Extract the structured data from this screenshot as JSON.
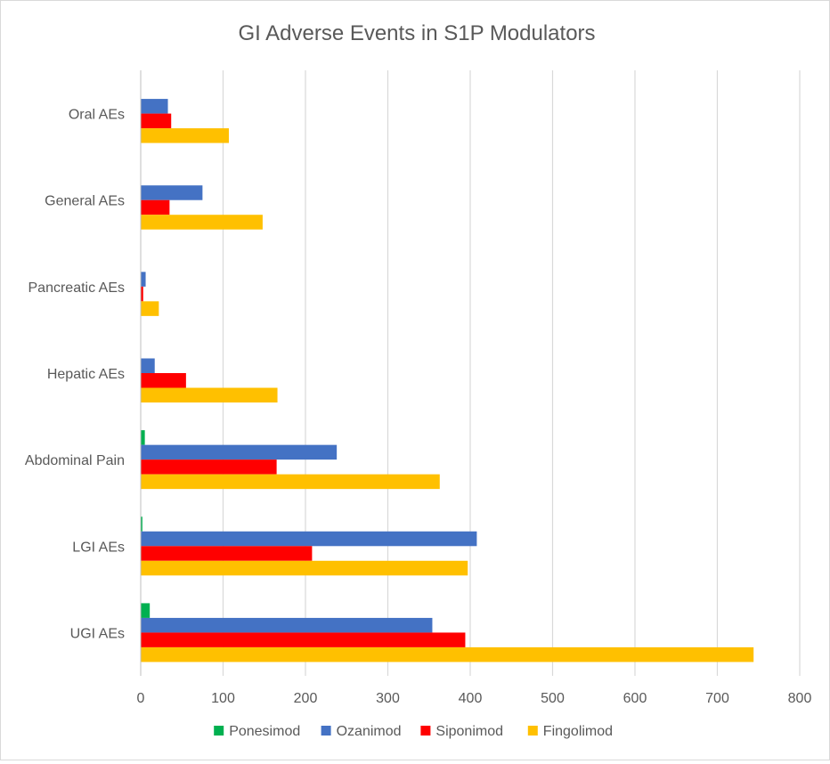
{
  "chart_data": {
    "type": "bar",
    "orientation": "horizontal",
    "title": "GI Adverse Events in S1P Modulators",
    "xlabel": "",
    "ylabel": "",
    "categories": [
      "UGI AEs",
      "LGI AEs",
      "Abdominal Pain",
      "Hepatic AEs",
      "Pancreatic AEs",
      "General AEs",
      "Oral AEs"
    ],
    "xlim": [
      0,
      800
    ],
    "x_ticks": [
      "0",
      "100",
      "200",
      "300",
      "400",
      "500",
      "600",
      "700",
      "800"
    ],
    "grid": true,
    "legend_position": "bottom",
    "series": [
      {
        "name": "Ponesimod",
        "color": "#00b050",
        "values": [
          11,
          2,
          5,
          0,
          0,
          0,
          0
        ]
      },
      {
        "name": "Ozanimod",
        "color": "#4472c4",
        "values": [
          354,
          408,
          238,
          17,
          6,
          75,
          33
        ]
      },
      {
        "name": "Siponimod",
        "color": "#ff0000",
        "values": [
          394,
          208,
          165,
          55,
          3,
          35,
          37
        ]
      },
      {
        "name": "Fingolimod",
        "color": "#ffc000",
        "values": [
          744,
          397,
          363,
          166,
          22,
          148,
          107
        ]
      }
    ]
  }
}
